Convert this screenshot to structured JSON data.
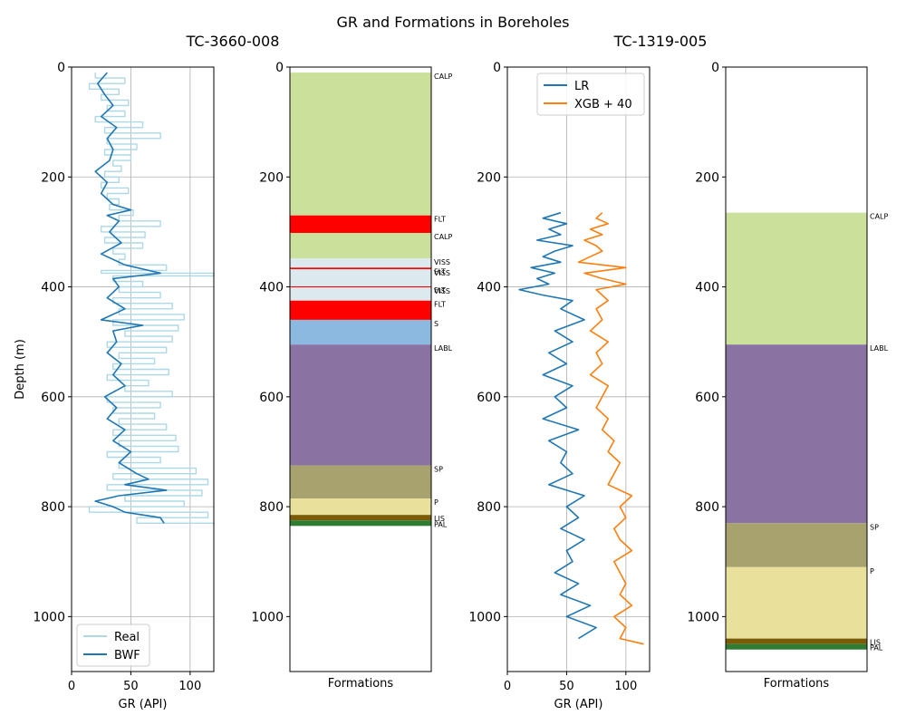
{
  "figure": {
    "suptitle": "GR and Formations in Boreholes",
    "subtitles": [
      "TC-3660-008",
      "TC-1319-005"
    ]
  },
  "chart_data": [
    {
      "type": "line",
      "name": "gr-3660",
      "xlabel": "GR (API)",
      "ylabel": "Depth (m)",
      "xlim": [
        0,
        120
      ],
      "ylim": [
        1100,
        0
      ],
      "xticks": [
        0,
        50,
        100
      ],
      "yticks": [
        0,
        200,
        400,
        600,
        800,
        1000
      ],
      "grid": true,
      "legend_position": "lower-left",
      "series": [
        {
          "name": "Real",
          "color": "#add8e6",
          "depth": [
            10,
            20,
            30,
            40,
            50,
            60,
            70,
            80,
            90,
            100,
            110,
            120,
            130,
            140,
            150,
            160,
            170,
            180,
            190,
            200,
            210,
            220,
            230,
            240,
            250,
            260,
            270,
            280,
            290,
            300,
            310,
            320,
            330,
            340,
            350,
            360,
            370,
            375,
            380,
            390,
            400,
            410,
            420,
            430,
            440,
            450,
            460,
            470,
            480,
            490,
            500,
            510,
            520,
            530,
            540,
            550,
            560,
            570,
            580,
            590,
            600,
            610,
            620,
            630,
            640,
            650,
            660,
            670,
            680,
            690,
            700,
            710,
            720,
            730,
            740,
            750,
            760,
            770,
            780,
            790,
            800,
            810,
            820,
            830
          ],
          "values": [
            20,
            45,
            15,
            40,
            25,
            48,
            30,
            45,
            20,
            60,
            28,
            75,
            30,
            55,
            28,
            50,
            35,
            42,
            28,
            40,
            25,
            48,
            30,
            40,
            32,
            52,
            40,
            75,
            25,
            62,
            28,
            60,
            35,
            45,
            40,
            80,
            25,
            120,
            35,
            60,
            40,
            75,
            35,
            85,
            40,
            95,
            35,
            90,
            45,
            85,
            30,
            80,
            40,
            70,
            35,
            82,
            30,
            65,
            45,
            85,
            30,
            75,
            35,
            70,
            40,
            80,
            35,
            88,
            40,
            90,
            30,
            75,
            40,
            105,
            35,
            115,
            30,
            110,
            45,
            95,
            15,
            115,
            55,
            120
          ]
        },
        {
          "name": "BWF",
          "color": "#1f77b4",
          "depth": [
            10,
            30,
            50,
            70,
            90,
            110,
            130,
            150,
            170,
            190,
            210,
            230,
            250,
            260,
            270,
            280,
            300,
            320,
            340,
            360,
            375,
            385,
            400,
            420,
            440,
            460,
            470,
            480,
            500,
            520,
            540,
            560,
            580,
            600,
            620,
            640,
            660,
            680,
            700,
            720,
            740,
            750,
            760,
            770,
            780,
            790,
            800,
            810,
            820,
            830
          ],
          "values": [
            30,
            22,
            28,
            35,
            25,
            38,
            30,
            35,
            32,
            20,
            30,
            25,
            35,
            50,
            30,
            40,
            32,
            42,
            25,
            45,
            75,
            35,
            40,
            30,
            45,
            25,
            60,
            35,
            38,
            30,
            42,
            35,
            45,
            28,
            38,
            30,
            45,
            35,
            50,
            40,
            55,
            65,
            45,
            80,
            40,
            20,
            35,
            45,
            75,
            78
          ]
        }
      ]
    },
    {
      "type": "area",
      "name": "formations-3660",
      "xlabel": "Formations",
      "ylim": [
        1100,
        0
      ],
      "yticks": [
        0,
        200,
        400,
        600,
        800,
        1000
      ],
      "intervals": [
        {
          "label": "CALP",
          "top": 10,
          "base": 270,
          "color": "#cbe09b"
        },
        {
          "label": "FLT",
          "top": 270,
          "base": 302,
          "color": "#ff0000"
        },
        {
          "label": "CALP",
          "top": 302,
          "base": 348,
          "color": "#cbe09b"
        },
        {
          "label": "VISS",
          "top": 348,
          "base": 365,
          "color": "#dce9ef"
        },
        {
          "label": "FLT",
          "top": 365,
          "base": 368,
          "color": "#ff0000"
        },
        {
          "label": "VISS",
          "top": 368,
          "base": 399,
          "color": "#dce9ef"
        },
        {
          "label": "FLT",
          "top": 399,
          "base": 401,
          "color": "#ff0000"
        },
        {
          "label": "VISS",
          "top": 401,
          "base": 425,
          "color": "#dce9ef"
        },
        {
          "label": "FLT",
          "top": 425,
          "base": 460,
          "color": "#ff0000"
        },
        {
          "label": "S",
          "top": 460,
          "base": 505,
          "color": "#8cb9e0"
        },
        {
          "label": "LABL",
          "top": 505,
          "base": 725,
          "color": "#8a72a2"
        },
        {
          "label": "SP",
          "top": 725,
          "base": 785,
          "color": "#a8a26e"
        },
        {
          "label": "P",
          "top": 785,
          "base": 815,
          "color": "#e9e09c"
        },
        {
          "label": "LIS",
          "top": 815,
          "base": 825,
          "color": "#7a5c06"
        },
        {
          "label": "PAL",
          "top": 825,
          "base": 835,
          "color": "#2e7d32"
        }
      ]
    },
    {
      "type": "line",
      "name": "gr-1319",
      "xlabel": "GR (API)",
      "xlim": [
        0,
        120
      ],
      "ylim": [
        1100,
        0
      ],
      "xticks": [
        0,
        50,
        100
      ],
      "yticks": [
        0,
        200,
        400,
        600,
        800,
        1000
      ],
      "grid": true,
      "legend_position": "upper-center",
      "series": [
        {
          "name": "LR",
          "color": "#1f77b4",
          "depth": [
            265,
            275,
            285,
            295,
            305,
            315,
            325,
            335,
            345,
            355,
            365,
            375,
            385,
            395,
            405,
            415,
            425,
            440,
            460,
            480,
            500,
            520,
            540,
            560,
            580,
            600,
            620,
            640,
            660,
            680,
            700,
            720,
            740,
            760,
            780,
            800,
            820,
            840,
            860,
            880,
            900,
            920,
            940,
            960,
            980,
            1000,
            1020,
            1040
          ],
          "values": [
            45,
            30,
            50,
            35,
            45,
            25,
            55,
            40,
            30,
            45,
            20,
            40,
            25,
            35,
            10,
            30,
            55,
            45,
            65,
            40,
            55,
            35,
            50,
            30,
            55,
            40,
            50,
            30,
            60,
            35,
            50,
            45,
            55,
            35,
            65,
            50,
            60,
            45,
            65,
            50,
            55,
            40,
            60,
            45,
            70,
            50,
            75,
            60
          ]
        },
        {
          "name": "XGB + 40",
          "color": "#ff7f0e",
          "depth": [
            265,
            275,
            285,
            295,
            305,
            315,
            325,
            335,
            345,
            355,
            365,
            375,
            385,
            395,
            405,
            415,
            425,
            440,
            460,
            480,
            500,
            520,
            540,
            560,
            580,
            600,
            620,
            640,
            660,
            680,
            700,
            720,
            740,
            760,
            780,
            800,
            820,
            840,
            860,
            880,
            900,
            920,
            940,
            960,
            980,
            1000,
            1020,
            1040,
            1050
          ],
          "values": [
            80,
            75,
            85,
            70,
            80,
            65,
            75,
            80,
            70,
            60,
            100,
            65,
            80,
            100,
            75,
            80,
            85,
            75,
            80,
            70,
            85,
            75,
            80,
            70,
            85,
            80,
            75,
            85,
            80,
            90,
            85,
            95,
            90,
            85,
            105,
            95,
            100,
            90,
            95,
            105,
            90,
            95,
            100,
            95,
            105,
            90,
            100,
            95,
            115
          ]
        }
      ]
    },
    {
      "type": "area",
      "name": "formations-1319",
      "xlabel": "Formations",
      "ylim": [
        1100,
        0
      ],
      "yticks": [
        0,
        200,
        400,
        600,
        800,
        1000
      ],
      "intervals": [
        {
          "label": "CALP",
          "top": 265,
          "base": 505,
          "color": "#cbe09b"
        },
        {
          "label": "LABL",
          "top": 505,
          "base": 830,
          "color": "#8a72a2"
        },
        {
          "label": "SP",
          "top": 830,
          "base": 910,
          "color": "#a8a26e"
        },
        {
          "label": "P",
          "top": 910,
          "base": 1040,
          "color": "#e9e09c"
        },
        {
          "label": "LIS",
          "top": 1040,
          "base": 1050,
          "color": "#7a5c06"
        },
        {
          "label": "PAL",
          "top": 1050,
          "base": 1060,
          "color": "#2e7d32"
        }
      ]
    }
  ]
}
